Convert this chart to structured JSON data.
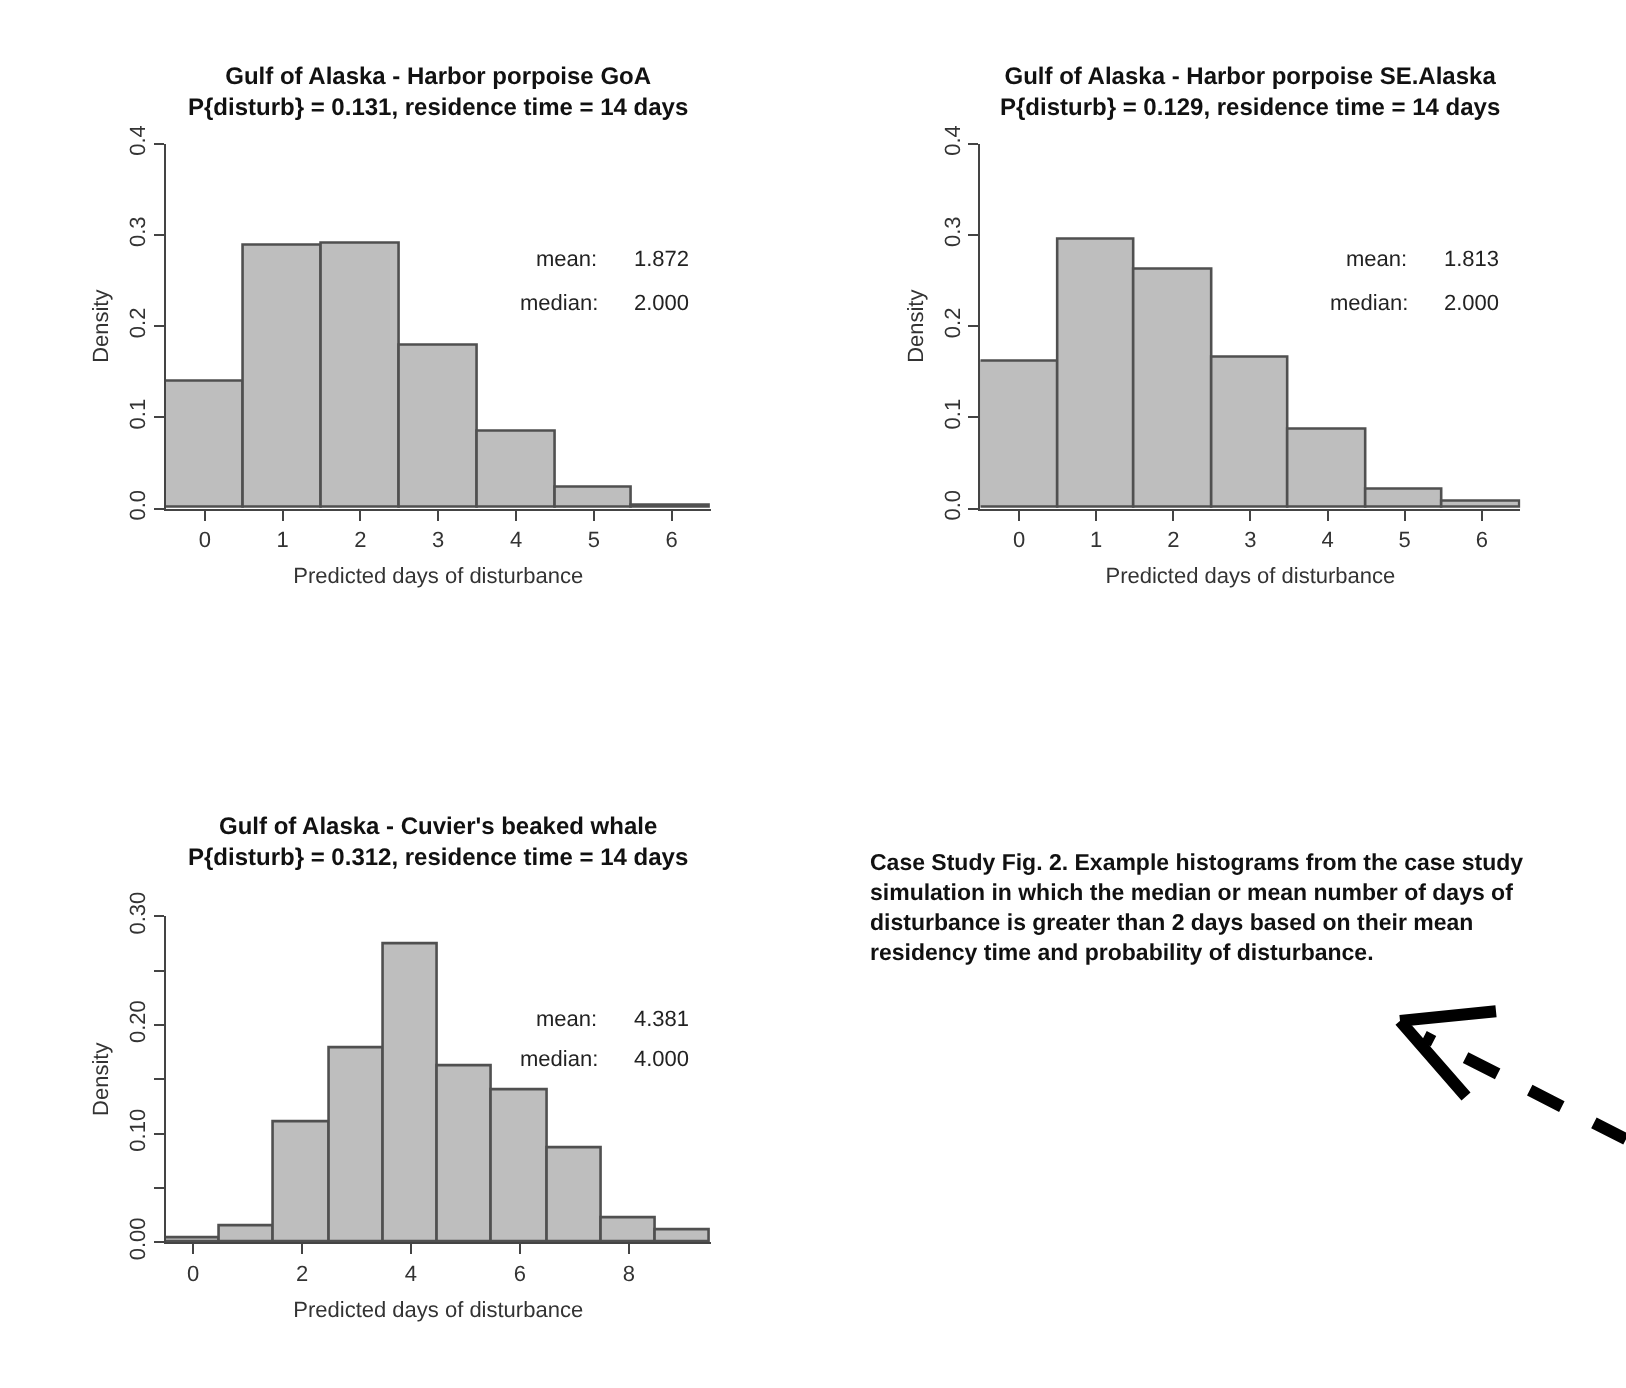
{
  "chart_data": [
    {
      "type": "histogram",
      "title": "Gulf of Alaska - Harbor porpoise GoA",
      "subtitle": "P{disturb} = 0.131, residence time = 14 days",
      "xlabel": "Predicted days of disturbance",
      "ylabel": "Density",
      "color": "#bebebe",
      "bins": [
        -0.5,
        0.5,
        1.5,
        2.5,
        3.5,
        4.5,
        5.5,
        6.5
      ],
      "values": [
        0.138,
        0.288,
        0.291,
        0.178,
        0.084,
        0.023,
        0.004
      ],
      "xlim": [
        -0.5,
        6.5
      ],
      "xticks": [
        0,
        1,
        2,
        3,
        4,
        5,
        6
      ],
      "ylim": [
        0,
        0.4
      ],
      "yticks": [
        {
          "value": 0,
          "label": "0.0"
        },
        {
          "value": 0.1,
          "label": "0.1"
        },
        {
          "value": 0.2,
          "label": "0.2"
        },
        {
          "value": 0.3,
          "label": "0.3"
        },
        {
          "value": 0.4,
          "label": "0.4"
        }
      ],
      "annotations": [
        "mean:",
        "1.872",
        "median:",
        "2.000"
      ]
    },
    {
      "type": "histogram",
      "title": "Gulf of Alaska - Harbor porpoise SE.Alaska",
      "subtitle": "P{disturb} = 0.129, residence time = 14 days",
      "xlabel": "Predicted days of disturbance",
      "ylabel": "Density",
      "color": "#bebebe",
      "bins": [
        -0.5,
        0.5,
        1.5,
        2.5,
        3.5,
        4.5,
        5.5,
        6.5
      ],
      "values": [
        0.16,
        0.295,
        0.262,
        0.166,
        0.086,
        0.02,
        0.007
      ],
      "xlim": [
        -0.5,
        6.5
      ],
      "xticks": [
        0,
        1,
        2,
        3,
        4,
        5,
        6
      ],
      "ylim": [
        0,
        0.4
      ],
      "yticks": [
        {
          "value": 0,
          "label": "0.0"
        },
        {
          "value": 0.1,
          "label": "0.1"
        },
        {
          "value": 0.2,
          "label": "0.2"
        },
        {
          "value": 0.3,
          "label": "0.3"
        },
        {
          "value": 0.4,
          "label": "0.4"
        }
      ],
      "annotations": [
        "mean:",
        "1.813",
        "median:",
        "2.000"
      ]
    },
    {
      "type": "histogram",
      "title": "Gulf of Alaska - Cuvier's beaked whale",
      "subtitle": "P{disturb} = 0.312, residence time = 14 days",
      "xlabel": "Predicted days of disturbance",
      "ylabel": "Density",
      "color": "#bebebe",
      "bins": [
        -0.5,
        0.5,
        1.5,
        2.5,
        3.5,
        4.5,
        5.5,
        6.5,
        7.5,
        8.5,
        9.5
      ],
      "values": [
        0.003,
        0.015,
        0.111,
        0.179,
        0.275,
        0.162,
        0.14,
        0.086,
        0.021,
        0.01
      ],
      "xlim": [
        -0.5,
        9.5
      ],
      "xticks": [
        0,
        2,
        4,
        6,
        8
      ],
      "ylim": [
        0,
        0.3
      ],
      "yticks": [
        {
          "value": 0,
          "label": "0.00"
        },
        {
          "value": 0.05,
          "label": null
        },
        {
          "value": 0.1,
          "label": "0.10"
        },
        {
          "value": 0.15,
          "label": null
        },
        {
          "value": 0.2,
          "label": "0.20"
        },
        {
          "value": 0.25,
          "label": null
        },
        {
          "value": 0.3,
          "label": "0.30"
        }
      ],
      "annotations": [
        "mean:",
        "4.381",
        "median:",
        "4.000"
      ]
    },
    {
      "type": "other",
      "annotations": [
        "Case Study Fig. 2. Example histograms from the case study simulation in which the median or mean number of days of disturbance is greater than 2 days based on their mean residency time and probability of disturbance."
      ]
    }
  ]
}
